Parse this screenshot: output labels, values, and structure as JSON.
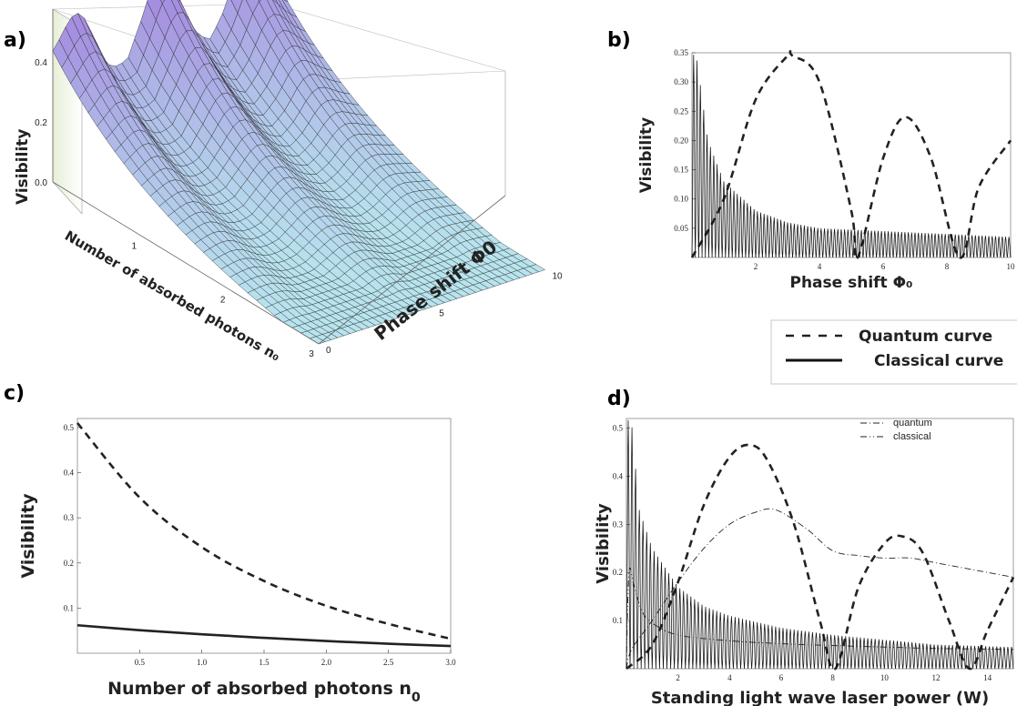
{
  "panels": {
    "a": {
      "label": "a)"
    },
    "b": {
      "label": "b)"
    },
    "c": {
      "label": "c)"
    },
    "d": {
      "label": "d)"
    }
  },
  "legend_main": {
    "quantum": "Quantum curve",
    "classical": "Classical curve"
  },
  "chart_data": [
    {
      "id": "a",
      "type": "surface3d",
      "zlabel": "Visibility",
      "xlabel": "Number of absorbed photons n₀",
      "ylabel": "Phase shift Φ0",
      "z_ticks": [
        "0.0",
        "0.2",
        "0.4"
      ],
      "x_ticks": [
        "1",
        "2",
        "3"
      ],
      "y_ticks": [
        "0",
        "5",
        "10"
      ],
      "xlim": [
        0,
        3
      ],
      "ylim": [
        0,
        10
      ],
      "zlim": [
        0,
        0.5
      ],
      "colors": {
        "surface_low": "#b8e4ee",
        "surface_high": "#a58ee0",
        "mesh": "#222222"
      }
    },
    {
      "id": "b",
      "type": "line",
      "xlabel": "Phase shift Φ₀",
      "ylabel": "Visibility",
      "xlim": [
        0,
        10
      ],
      "ylim": [
        0,
        0.35
      ],
      "x_ticks": [
        "2",
        "4",
        "6",
        "8",
        "10"
      ],
      "y_ticks": [
        "0.05",
        "0.10",
        "0.15",
        "0.20",
        "0.25",
        "0.30",
        "0.35"
      ],
      "series": [
        {
          "style": "dashed",
          "x": [
            0,
            1,
            2,
            3,
            3.15,
            4,
            5,
            5.2,
            6,
            6.7,
            7.5,
            8.4,
            9,
            10
          ],
          "y": [
            0,
            0.1,
            0.27,
            0.345,
            0.345,
            0.3,
            0.08,
            0.0,
            0.17,
            0.24,
            0.17,
            0.0,
            0.12,
            0.2
          ]
        },
        {
          "style": "solid-oscillating",
          "envelope_x": [
            0,
            0.15,
            0.5,
            1,
            2,
            3,
            4,
            6,
            8,
            10
          ],
          "envelope_y": [
            0.35,
            0.34,
            0.2,
            0.13,
            0.08,
            0.06,
            0.05,
            0.045,
            0.04,
            0.035
          ]
        }
      ]
    },
    {
      "id": "c",
      "type": "line",
      "xlabel": "Number of absorbed photons n",
      "xlabel_sub": "0",
      "ylabel": "Visibility",
      "xlim": [
        0,
        3
      ],
      "ylim": [
        0,
        0.52
      ],
      "x_ticks": [
        "0.5",
        "1.0",
        "1.5",
        "2.0",
        "2.5",
        "3.0"
      ],
      "y_ticks": [
        "0.1",
        "0.2",
        "0.3",
        "0.4",
        "0.5"
      ],
      "series": [
        {
          "style": "dashed",
          "x": [
            0,
            0.5,
            1.0,
            1.5,
            2.0,
            2.5,
            3.0
          ],
          "y": [
            0.51,
            0.345,
            0.235,
            0.16,
            0.105,
            0.065,
            0.032
          ]
        },
        {
          "style": "solid",
          "x": [
            0,
            0.5,
            1.0,
            1.5,
            2.0,
            2.5,
            3.0
          ],
          "y": [
            0.062,
            0.051,
            0.042,
            0.034,
            0.027,
            0.021,
            0.016
          ]
        }
      ]
    },
    {
      "id": "d",
      "type": "line",
      "xlabel": "Standing light wave laser power (W)",
      "ylabel": "Visibility",
      "xlim": [
        0,
        15
      ],
      "ylim": [
        0,
        0.52
      ],
      "x_ticks": [
        "2",
        "4",
        "6",
        "8",
        "10",
        "12",
        "14"
      ],
      "y_ticks": [
        "0.1",
        "0.2",
        "0.3",
        "0.4",
        "0.5"
      ],
      "legend": {
        "placement": "top-right",
        "entries": [
          "quantum",
          "classical"
        ]
      },
      "series": [
        {
          "style": "dashed",
          "x": [
            0,
            1,
            2,
            3,
            4,
            4.8,
            5.5,
            6.5,
            7.5,
            8.1,
            9,
            10,
            10.7,
            11.5,
            12.5,
            13.3,
            14,
            15
          ],
          "y": [
            0,
            0.05,
            0.18,
            0.34,
            0.44,
            0.465,
            0.43,
            0.3,
            0.1,
            0.0,
            0.17,
            0.26,
            0.275,
            0.24,
            0.1,
            0.0,
            0.08,
            0.19
          ]
        },
        {
          "style": "dash-dot",
          "x": [
            0,
            0.2,
            1,
            2,
            3,
            4,
            5,
            5.8,
            7,
            8,
            9,
            10,
            11,
            12,
            13,
            14,
            15
          ],
          "y": [
            0,
            0.04,
            0.1,
            0.18,
            0.25,
            0.3,
            0.325,
            0.33,
            0.29,
            0.245,
            0.235,
            0.23,
            0.23,
            0.22,
            0.21,
            0.2,
            0.19
          ]
        },
        {
          "style": "solid-oscillating",
          "envelope_x": [
            0,
            0.2,
            0.5,
            1,
            2,
            3,
            4,
            6,
            8,
            10,
            12,
            15
          ],
          "envelope_y": [
            0.52,
            0.51,
            0.33,
            0.25,
            0.17,
            0.13,
            0.11,
            0.085,
            0.07,
            0.06,
            0.05,
            0.045
          ]
        },
        {
          "style": "dash-dot-dot",
          "x": [
            0,
            0.1,
            0.3,
            0.6,
            1,
            2,
            4,
            6,
            8,
            10,
            12,
            15
          ],
          "y": [
            0,
            0.2,
            0.17,
            0.12,
            0.095,
            0.07,
            0.058,
            0.052,
            0.048,
            0.045,
            0.042,
            0.04
          ]
        }
      ]
    }
  ]
}
